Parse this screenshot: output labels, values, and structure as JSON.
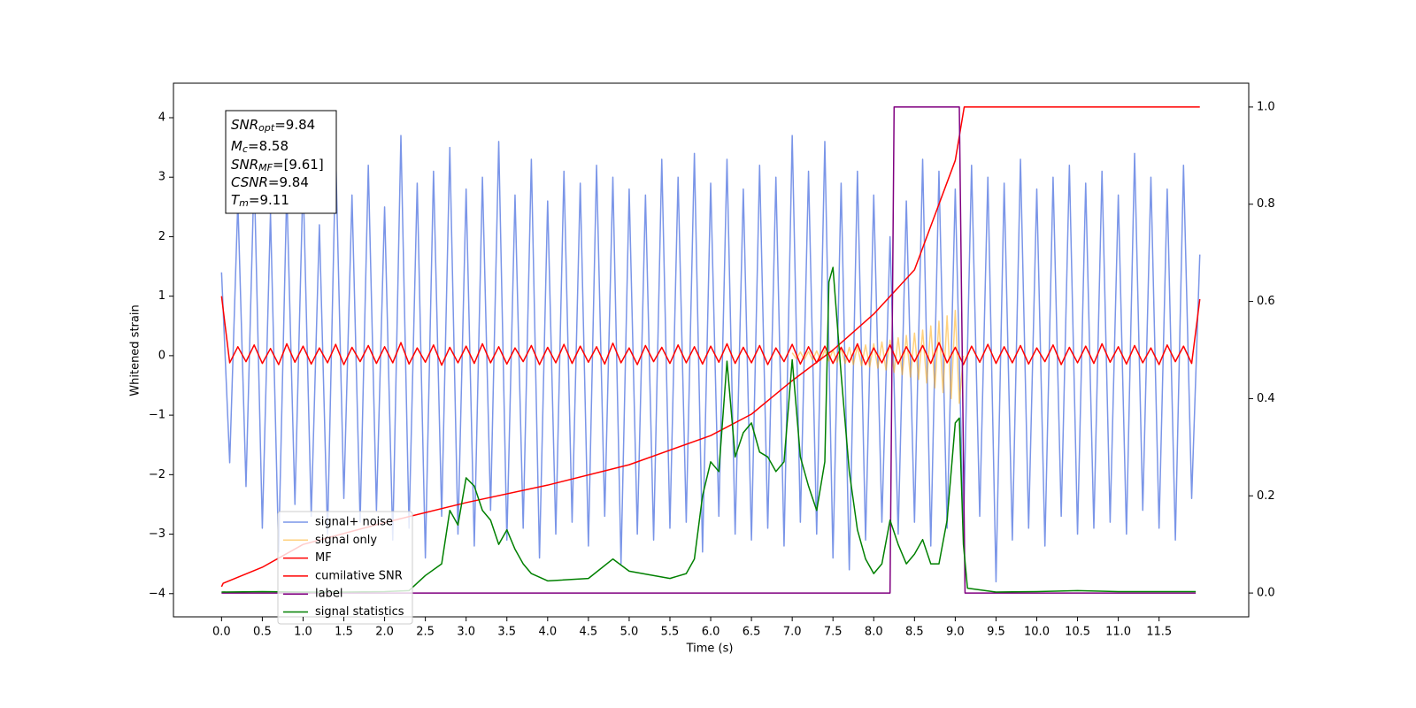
{
  "chart_data": {
    "type": "line",
    "xlabel": "Time (s)",
    "ylabel": "Whitened strain",
    "xlim": [
      -0.59,
      12.6
    ],
    "ylim": [
      -4.39,
      4.58
    ],
    "y2lim": [
      -0.049,
      1.049
    ],
    "xticks": [
      {
        "value": 0,
        "label": "0.0"
      },
      0.5,
      {
        "value": 1,
        "label": "1.0"
      },
      1.5,
      {
        "value": 2,
        "label": "2.0"
      },
      2.5,
      {
        "value": 3,
        "label": "3.0"
      },
      3.5,
      {
        "value": 4,
        "label": "4.0"
      },
      4.5,
      {
        "value": 5,
        "label": "5.0"
      },
      5.5,
      {
        "value": 6,
        "label": "6.0"
      },
      6.5,
      {
        "value": 7,
        "label": "7.0"
      },
      7.5,
      {
        "value": 8,
        "label": "8.0"
      },
      8.5,
      {
        "value": 9,
        "label": "9.0"
      },
      9.5,
      {
        "value": 10,
        "label": "10.0"
      },
      10.5,
      {
        "value": 11,
        "label": "11.0"
      },
      11.5
    ],
    "yticks": [
      {
        "value": -4,
        "label": "−4"
      },
      {
        "value": -3,
        "label": "−3"
      },
      {
        "value": -2,
        "label": "−2"
      },
      {
        "value": -1,
        "label": "−1"
      },
      0,
      1,
      2,
      3,
      4
    ],
    "y2ticks": [
      {
        "value": 0,
        "label": "0.0"
      },
      0.2,
      0.4,
      0.6,
      0.8,
      {
        "value": 1,
        "label": "1.0"
      }
    ],
    "legend": "lower left",
    "annotation": [
      {
        "symbol": "SNR",
        "sub": "opt",
        "text": "=9.84"
      },
      {
        "symbol": "M",
        "sub": "c",
        "text": "=8.58"
      },
      {
        "symbol": "SNR",
        "sub": "MF",
        "text": "=[9.61]"
      },
      {
        "symbol": "CSNR",
        "text": "=9.84"
      },
      {
        "symbol": "T",
        "sub": "m",
        "text": "=9.11"
      }
    ],
    "x": [
      0,
      0.1,
      0.2,
      0.3,
      0.4,
      0.5,
      0.6,
      0.7,
      0.8,
      0.9,
      1,
      1.1,
      1.2,
      1.3,
      1.4,
      1.5,
      1.6,
      1.7,
      1.8,
      1.9,
      2,
      2.1,
      2.2,
      2.3,
      2.4,
      2.5,
      2.6,
      2.7,
      2.8,
      2.9,
      3,
      3.1,
      3.2,
      3.3,
      3.4,
      3.5,
      3.6,
      3.7,
      3.8,
      3.9,
      4,
      4.1,
      4.2,
      4.3,
      4.4,
      4.5,
      4.6,
      4.7,
      4.8,
      4.9,
      5,
      5.1,
      5.2,
      5.3,
      5.4,
      5.5,
      5.6,
      5.7,
      5.8,
      5.9,
      6,
      6.1,
      6.2,
      6.3,
      6.4,
      6.5,
      6.6,
      6.7,
      6.8,
      6.9,
      7,
      7.1,
      7.2,
      7.3,
      7.4,
      7.5,
      7.6,
      7.7,
      7.8,
      7.9,
      8,
      8.1,
      8.2,
      8.3,
      8.4,
      8.5,
      8.6,
      8.7,
      8.8,
      8.9,
      9,
      9.1,
      9.2,
      9.3,
      9.4,
      9.5,
      9.6,
      9.7,
      9.8,
      9.9,
      10,
      10.1,
      10.2,
      10.3,
      10.4,
      10.5,
      10.6,
      10.7,
      10.8,
      10.9,
      11,
      11.1,
      11.2,
      11.3,
      11.4,
      11.5,
      11.6,
      11.7,
      11.8,
      11.9,
      12
    ],
    "series": [
      {
        "name": "signal+ noise",
        "color": "#7a95e8",
        "values": [
          1.4,
          -1.8,
          2.6,
          -2.2,
          3.1,
          -2.9,
          2.4,
          -3.3,
          2.8,
          -2.5,
          3.0,
          -2.7,
          2.2,
          -3.0,
          3.4,
          -2.4,
          2.7,
          -2.8,
          3.2,
          -2.6,
          2.5,
          -3.1,
          3.7,
          -2.9,
          2.9,
          -3.4,
          3.1,
          -2.7,
          3.5,
          -3.0,
          2.8,
          -3.2,
          3.0,
          -2.6,
          3.6,
          -3.1,
          2.7,
          -2.9,
          3.3,
          -3.4,
          2.6,
          -3.0,
          3.1,
          -2.8,
          2.9,
          -3.2,
          3.2,
          -2.7,
          3.0,
          -3.5,
          2.8,
          -3.0,
          2.7,
          -3.1,
          3.3,
          -2.9,
          3.0,
          -2.8,
          3.4,
          -3.3,
          2.9,
          -2.7,
          3.3,
          -3.0,
          2.8,
          -3.1,
          3.2,
          -2.9,
          3.0,
          -3.2,
          3.7,
          -2.8,
          3.1,
          -3.0,
          3.6,
          -3.4,
          2.9,
          -3.6,
          3.1,
          -3.1,
          2.7,
          -2.8,
          2.0,
          -3.0,
          2.6,
          -2.8,
          3.3,
          -3.2,
          3.1,
          -2.9,
          2.8,
          -3.0,
          3.2,
          -2.7,
          3.0,
          -3.8,
          2.9,
          -3.1,
          3.3,
          -2.9,
          2.8,
          -3.2,
          3.0,
          -2.7,
          3.2,
          -3.0,
          2.9,
          -2.9,
          3.1,
          -2.8,
          2.7,
          -3.0,
          3.4,
          -2.6,
          3.0,
          -2.9,
          2.8,
          -3.1,
          3.2,
          -2.4,
          1.7
        ]
      },
      {
        "name": "signal only",
        "color": "#ffa500",
        "x": [
          7.0,
          7.05,
          7.1,
          7.15,
          7.2,
          7.25,
          7.3,
          7.35,
          7.4,
          7.45,
          7.5,
          7.55,
          7.6,
          7.65,
          7.7,
          7.75,
          7.8,
          7.85,
          7.9,
          7.95,
          8.0,
          8.05,
          8.1,
          8.15,
          8.2,
          8.25,
          8.3,
          8.35,
          8.4,
          8.45,
          8.5,
          8.55,
          8.6,
          8.65,
          8.7,
          8.75,
          8.8,
          8.85,
          8.9,
          8.95,
          9.0,
          9.05,
          9.1
        ],
        "values": [
          0.05,
          -0.05,
          0.06,
          -0.06,
          0.07,
          -0.07,
          0.08,
          -0.08,
          0.09,
          -0.09,
          0.1,
          -0.11,
          0.12,
          -0.13,
          0.14,
          -0.15,
          0.16,
          -0.17,
          0.18,
          -0.19,
          0.2,
          -0.21,
          0.23,
          -0.24,
          0.26,
          -0.28,
          0.3,
          -0.32,
          0.34,
          -0.36,
          0.38,
          -0.4,
          0.43,
          -0.46,
          0.5,
          -0.54,
          0.58,
          -0.62,
          0.67,
          -0.72,
          0.76,
          -0.8,
          0.0
        ]
      },
      {
        "name": "MF",
        "color": "#ff0000",
        "values": [
          1.0,
          -0.12,
          0.15,
          -0.1,
          0.18,
          -0.13,
          0.12,
          -0.15,
          0.2,
          -0.11,
          0.16,
          -0.14,
          0.13,
          -0.12,
          0.19,
          -0.15,
          0.14,
          -0.1,
          0.17,
          -0.13,
          0.15,
          -0.12,
          0.22,
          -0.14,
          0.13,
          -0.11,
          0.18,
          -0.16,
          0.14,
          -0.12,
          0.16,
          -0.13,
          0.2,
          -0.12,
          0.15,
          -0.14,
          0.13,
          -0.1,
          0.17,
          -0.15,
          0.14,
          -0.12,
          0.19,
          -0.13,
          0.16,
          -0.11,
          0.15,
          -0.14,
          0.21,
          -0.12,
          0.13,
          -0.15,
          0.17,
          -0.1,
          0.14,
          -0.13,
          0.18,
          -0.12,
          0.15,
          -0.14,
          0.16,
          -0.11,
          0.2,
          -0.13,
          0.14,
          -0.12,
          0.17,
          -0.15,
          0.13,
          -0.1,
          0.19,
          -0.14,
          0.15,
          -0.12,
          0.16,
          -0.13,
          0.14,
          -0.11,
          0.2,
          -0.15,
          0.13,
          -0.12,
          0.18,
          -0.14,
          0.15,
          -0.1,
          0.17,
          -0.13,
          0.22,
          -0.12,
          0.14,
          -0.15,
          0.16,
          -0.11,
          0.19,
          -0.13,
          0.15,
          -0.12,
          0.17,
          -0.14,
          0.13,
          -0.1,
          0.18,
          -0.15,
          0.14,
          -0.12,
          0.16,
          -0.13,
          0.2,
          -0.11,
          0.15,
          -0.14,
          0.17,
          -0.12,
          0.13,
          -0.15,
          0.18,
          -0.1,
          0.16,
          -0.13,
          0.95
        ]
      },
      {
        "name": "cumilative SNR",
        "color": "#ff0000",
        "axis": "y2",
        "x": [
          0,
          0.02,
          0.5,
          1,
          2,
          3,
          4,
          5,
          6,
          6.5,
          7,
          7.5,
          8,
          8.5,
          9,
          9.11,
          12
        ],
        "values": [
          0.013,
          0.02,
          0.053,
          0.1,
          0.145,
          0.186,
          0.222,
          0.264,
          0.324,
          0.368,
          0.437,
          0.5,
          0.574,
          0.665,
          0.89,
          1.0,
          1.0
        ]
      },
      {
        "name": "label",
        "color": "#800080",
        "axis": "y2",
        "x": [
          0,
          8.2,
          8.25,
          9.05,
          9.12,
          11.95
        ],
        "values": [
          0,
          0,
          1,
          1,
          0,
          0
        ]
      },
      {
        "name": "signal statistics",
        "color": "#008000",
        "axis": "y2",
        "x": [
          0,
          0.5,
          1,
          1.5,
          2,
          2.3,
          2.5,
          2.7,
          2.8,
          2.9,
          3.0,
          3.1,
          3.2,
          3.3,
          3.4,
          3.5,
          3.6,
          3.7,
          3.8,
          4.0,
          4.5,
          4.8,
          5.0,
          5.5,
          5.7,
          5.8,
          5.9,
          6.0,
          6.1,
          6.2,
          6.3,
          6.4,
          6.5,
          6.6,
          6.7,
          6.8,
          6.9,
          7.0,
          7.1,
          7.2,
          7.3,
          7.4,
          7.45,
          7.5,
          7.6,
          7.7,
          7.8,
          7.9,
          8.0,
          8.1,
          8.2,
          8.3,
          8.4,
          8.5,
          8.6,
          8.7,
          8.8,
          8.9,
          9.0,
          9.05,
          9.1,
          9.15,
          9.5,
          10.0,
          10.5,
          11.0,
          11.95
        ],
        "values": [
          0.002,
          0.003,
          0.002,
          0.002,
          0.003,
          0.005,
          0.036,
          0.06,
          0.17,
          0.14,
          0.237,
          0.22,
          0.17,
          0.15,
          0.1,
          0.13,
          0.09,
          0.06,
          0.04,
          0.025,
          0.03,
          0.07,
          0.045,
          0.03,
          0.04,
          0.07,
          0.2,
          0.27,
          0.25,
          0.477,
          0.28,
          0.33,
          0.35,
          0.29,
          0.28,
          0.25,
          0.27,
          0.48,
          0.28,
          0.22,
          0.17,
          0.27,
          0.64,
          0.67,
          0.45,
          0.25,
          0.13,
          0.07,
          0.04,
          0.06,
          0.15,
          0.1,
          0.06,
          0.08,
          0.11,
          0.06,
          0.06,
          0.15,
          0.35,
          0.36,
          0.1,
          0.01,
          0.002,
          0.003,
          0.005,
          0.003,
          0.003
        ]
      }
    ]
  }
}
